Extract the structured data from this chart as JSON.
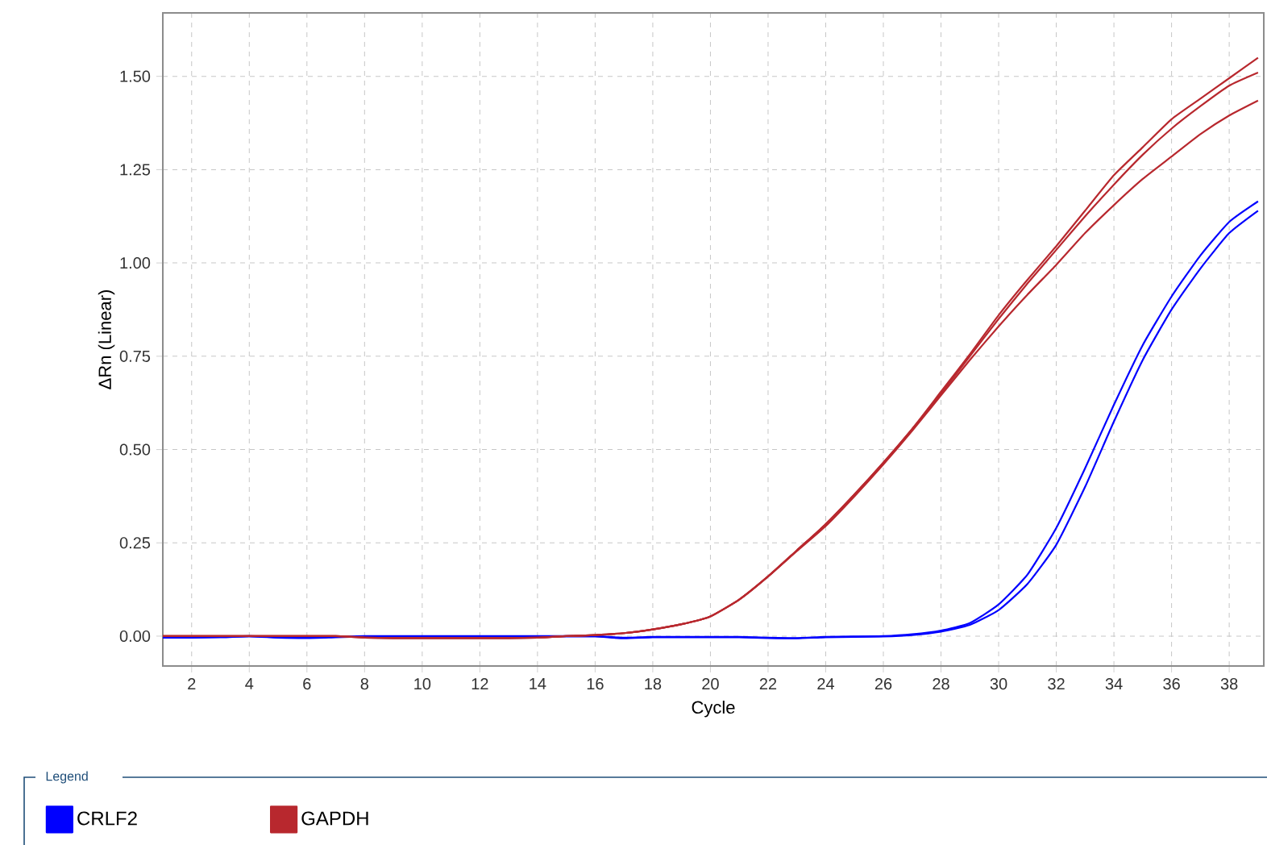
{
  "chart_data": {
    "type": "line",
    "xlabel": "Cycle",
    "ylabel": "ΔRn (Linear)",
    "legend_title": "Legend",
    "legend": "bottom",
    "grid": true,
    "x": [
      1,
      2,
      3,
      4,
      5,
      6,
      7,
      8,
      9,
      10,
      11,
      12,
      13,
      14,
      15,
      16,
      17,
      18,
      19,
      20,
      21,
      22,
      23,
      24,
      25,
      26,
      27,
      28,
      29,
      30,
      31,
      32,
      33,
      34,
      35,
      36,
      37,
      38,
      39
    ],
    "xlim": [
      1,
      39.2
    ],
    "ylim": [
      -0.08,
      1.67
    ],
    "xticks": [
      2,
      4,
      6,
      8,
      10,
      12,
      14,
      16,
      18,
      20,
      22,
      24,
      26,
      28,
      30,
      32,
      34,
      36,
      38
    ],
    "yticks": [
      {
        "value": 0,
        "label": "0.00"
      },
      {
        "value": 0.25,
        "label": "0.25"
      },
      {
        "value": 0.5,
        "label": "0.50"
      },
      {
        "value": 0.75,
        "label": "0.75"
      },
      {
        "value": 1,
        "label": "1.00"
      },
      {
        "value": 1.25,
        "label": "1.25"
      },
      {
        "value": 1.5,
        "label": "1.50"
      }
    ],
    "series": [
      {
        "name": "CRLF2",
        "color": "#0000ff",
        "values": [
          -0.004,
          -0.004,
          -0.003,
          -0.001,
          -0.004,
          -0.005,
          -0.003,
          -0.001,
          -0.001,
          -0.001,
          -0.001,
          -0.001,
          -0.001,
          -0.001,
          -0.001,
          -0.001,
          -0.006,
          -0.003,
          -0.003,
          -0.003,
          -0.003,
          -0.005,
          -0.006,
          -0.003,
          -0.002,
          -0.001,
          0.003,
          0.012,
          0.03,
          0.07,
          0.14,
          0.245,
          0.4,
          0.575,
          0.74,
          0.875,
          0.985,
          1.08,
          1.14
        ]
      },
      {
        "color": "#0000ff",
        "values": [
          -0.003,
          -0.003,
          -0.002,
          0,
          -0.003,
          -0.004,
          -0.002,
          0,
          0,
          0,
          0,
          0,
          0,
          0,
          0,
          0,
          -0.004,
          -0.002,
          -0.002,
          -0.002,
          -0.002,
          -0.004,
          -0.005,
          -0.002,
          -0.001,
          0,
          0.005,
          0.015,
          0.035,
          0.085,
          0.165,
          0.29,
          0.45,
          0.62,
          0.78,
          0.91,
          1.02,
          1.11,
          1.165
        ]
      },
      {
        "name": "GAPDH",
        "color": "#b8282e",
        "values": [
          0,
          0,
          0,
          0,
          0,
          0,
          0,
          -0.004,
          -0.005,
          -0.005,
          -0.005,
          -0.005,
          -0.005,
          -0.004,
          0,
          0.003,
          0.008,
          0.018,
          0.032,
          0.053,
          0.098,
          0.16,
          0.228,
          0.295,
          0.375,
          0.46,
          0.55,
          0.645,
          0.74,
          0.83,
          0.915,
          0.995,
          1.08,
          1.155,
          1.225,
          1.285,
          1.345,
          1.395,
          1.435
        ]
      },
      {
        "color": "#b8282e",
        "values": [
          0,
          0,
          0,
          0,
          0,
          0,
          0,
          -0.004,
          -0.005,
          -0.005,
          -0.005,
          -0.005,
          -0.005,
          -0.004,
          0,
          0.003,
          0.008,
          0.018,
          0.032,
          0.053,
          0.098,
          0.16,
          0.23,
          0.3,
          0.38,
          0.465,
          0.555,
          0.65,
          0.75,
          0.85,
          0.945,
          1.035,
          1.125,
          1.21,
          1.29,
          1.36,
          1.42,
          1.475,
          1.51
        ]
      },
      {
        "color": "#b8282e",
        "values": [
          0,
          0,
          0,
          0,
          0,
          0,
          0,
          -0.004,
          -0.005,
          -0.005,
          -0.005,
          -0.005,
          -0.005,
          -0.004,
          0,
          0.003,
          0.008,
          0.018,
          0.032,
          0.053,
          0.098,
          0.16,
          0.23,
          0.3,
          0.38,
          0.465,
          0.555,
          0.655,
          0.755,
          0.86,
          0.955,
          1.045,
          1.14,
          1.235,
          1.31,
          1.385,
          1.44,
          1.495,
          1.55
        ]
      }
    ]
  }
}
